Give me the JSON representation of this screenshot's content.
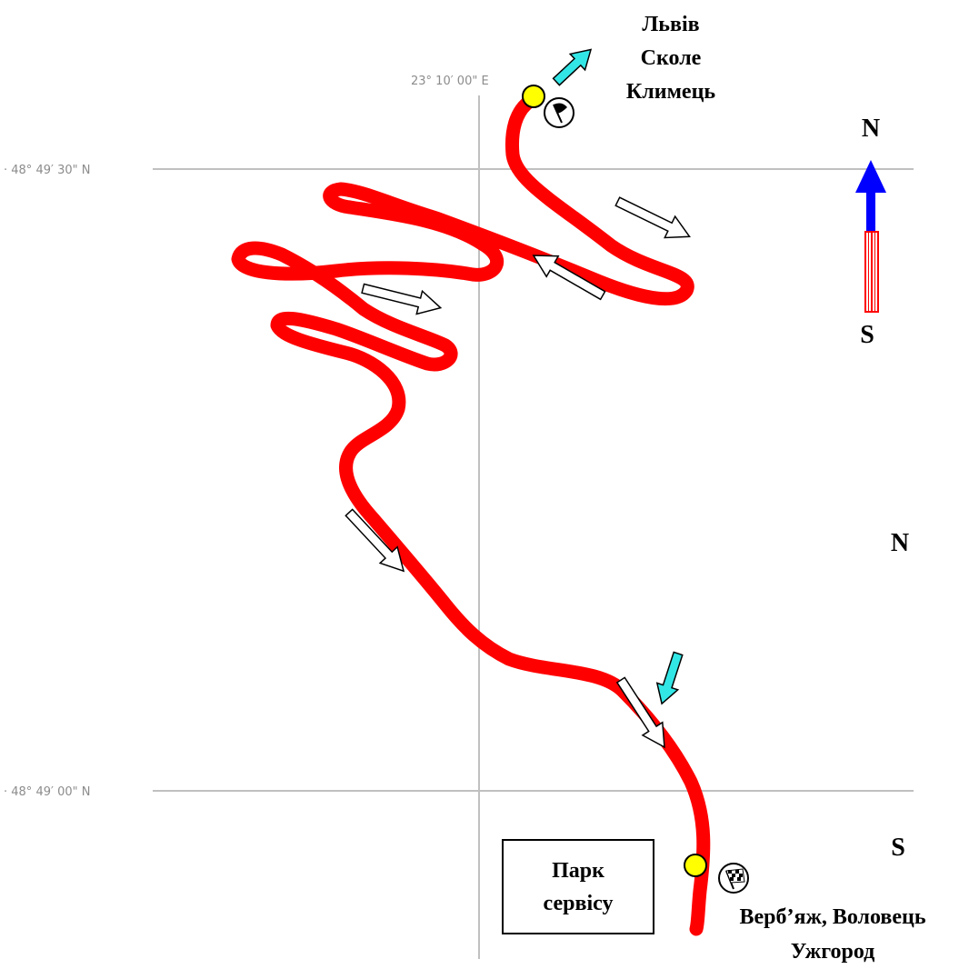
{
  "grid": {
    "longitude_label": "23° 10′ 00\" E",
    "latitude_top_label": "· 48° 49′ 30\" N",
    "latitude_bottom_label": "· 48° 49′ 00\" N"
  },
  "start": {
    "destinations": [
      "Львів",
      "Сколе",
      "Климець"
    ],
    "flag_icon": "black-flag-icon"
  },
  "finish": {
    "destinations": [
      "Верб’яж, Воловець",
      "Ужгород"
    ],
    "flag_icon": "checkered-flag-icon"
  },
  "service_park": {
    "lines": [
      "Парк",
      "сервісу"
    ]
  },
  "compass_arrow": {
    "north": "N",
    "south": "S"
  },
  "compass_text": {
    "north": "N",
    "south": "S"
  },
  "colors": {
    "route": "#ff0000",
    "start_finish_dot": "#ffff00",
    "exit_arrow": "#33e6e6",
    "compass_north": "#0000ff",
    "grid": "#c0c0c0"
  }
}
